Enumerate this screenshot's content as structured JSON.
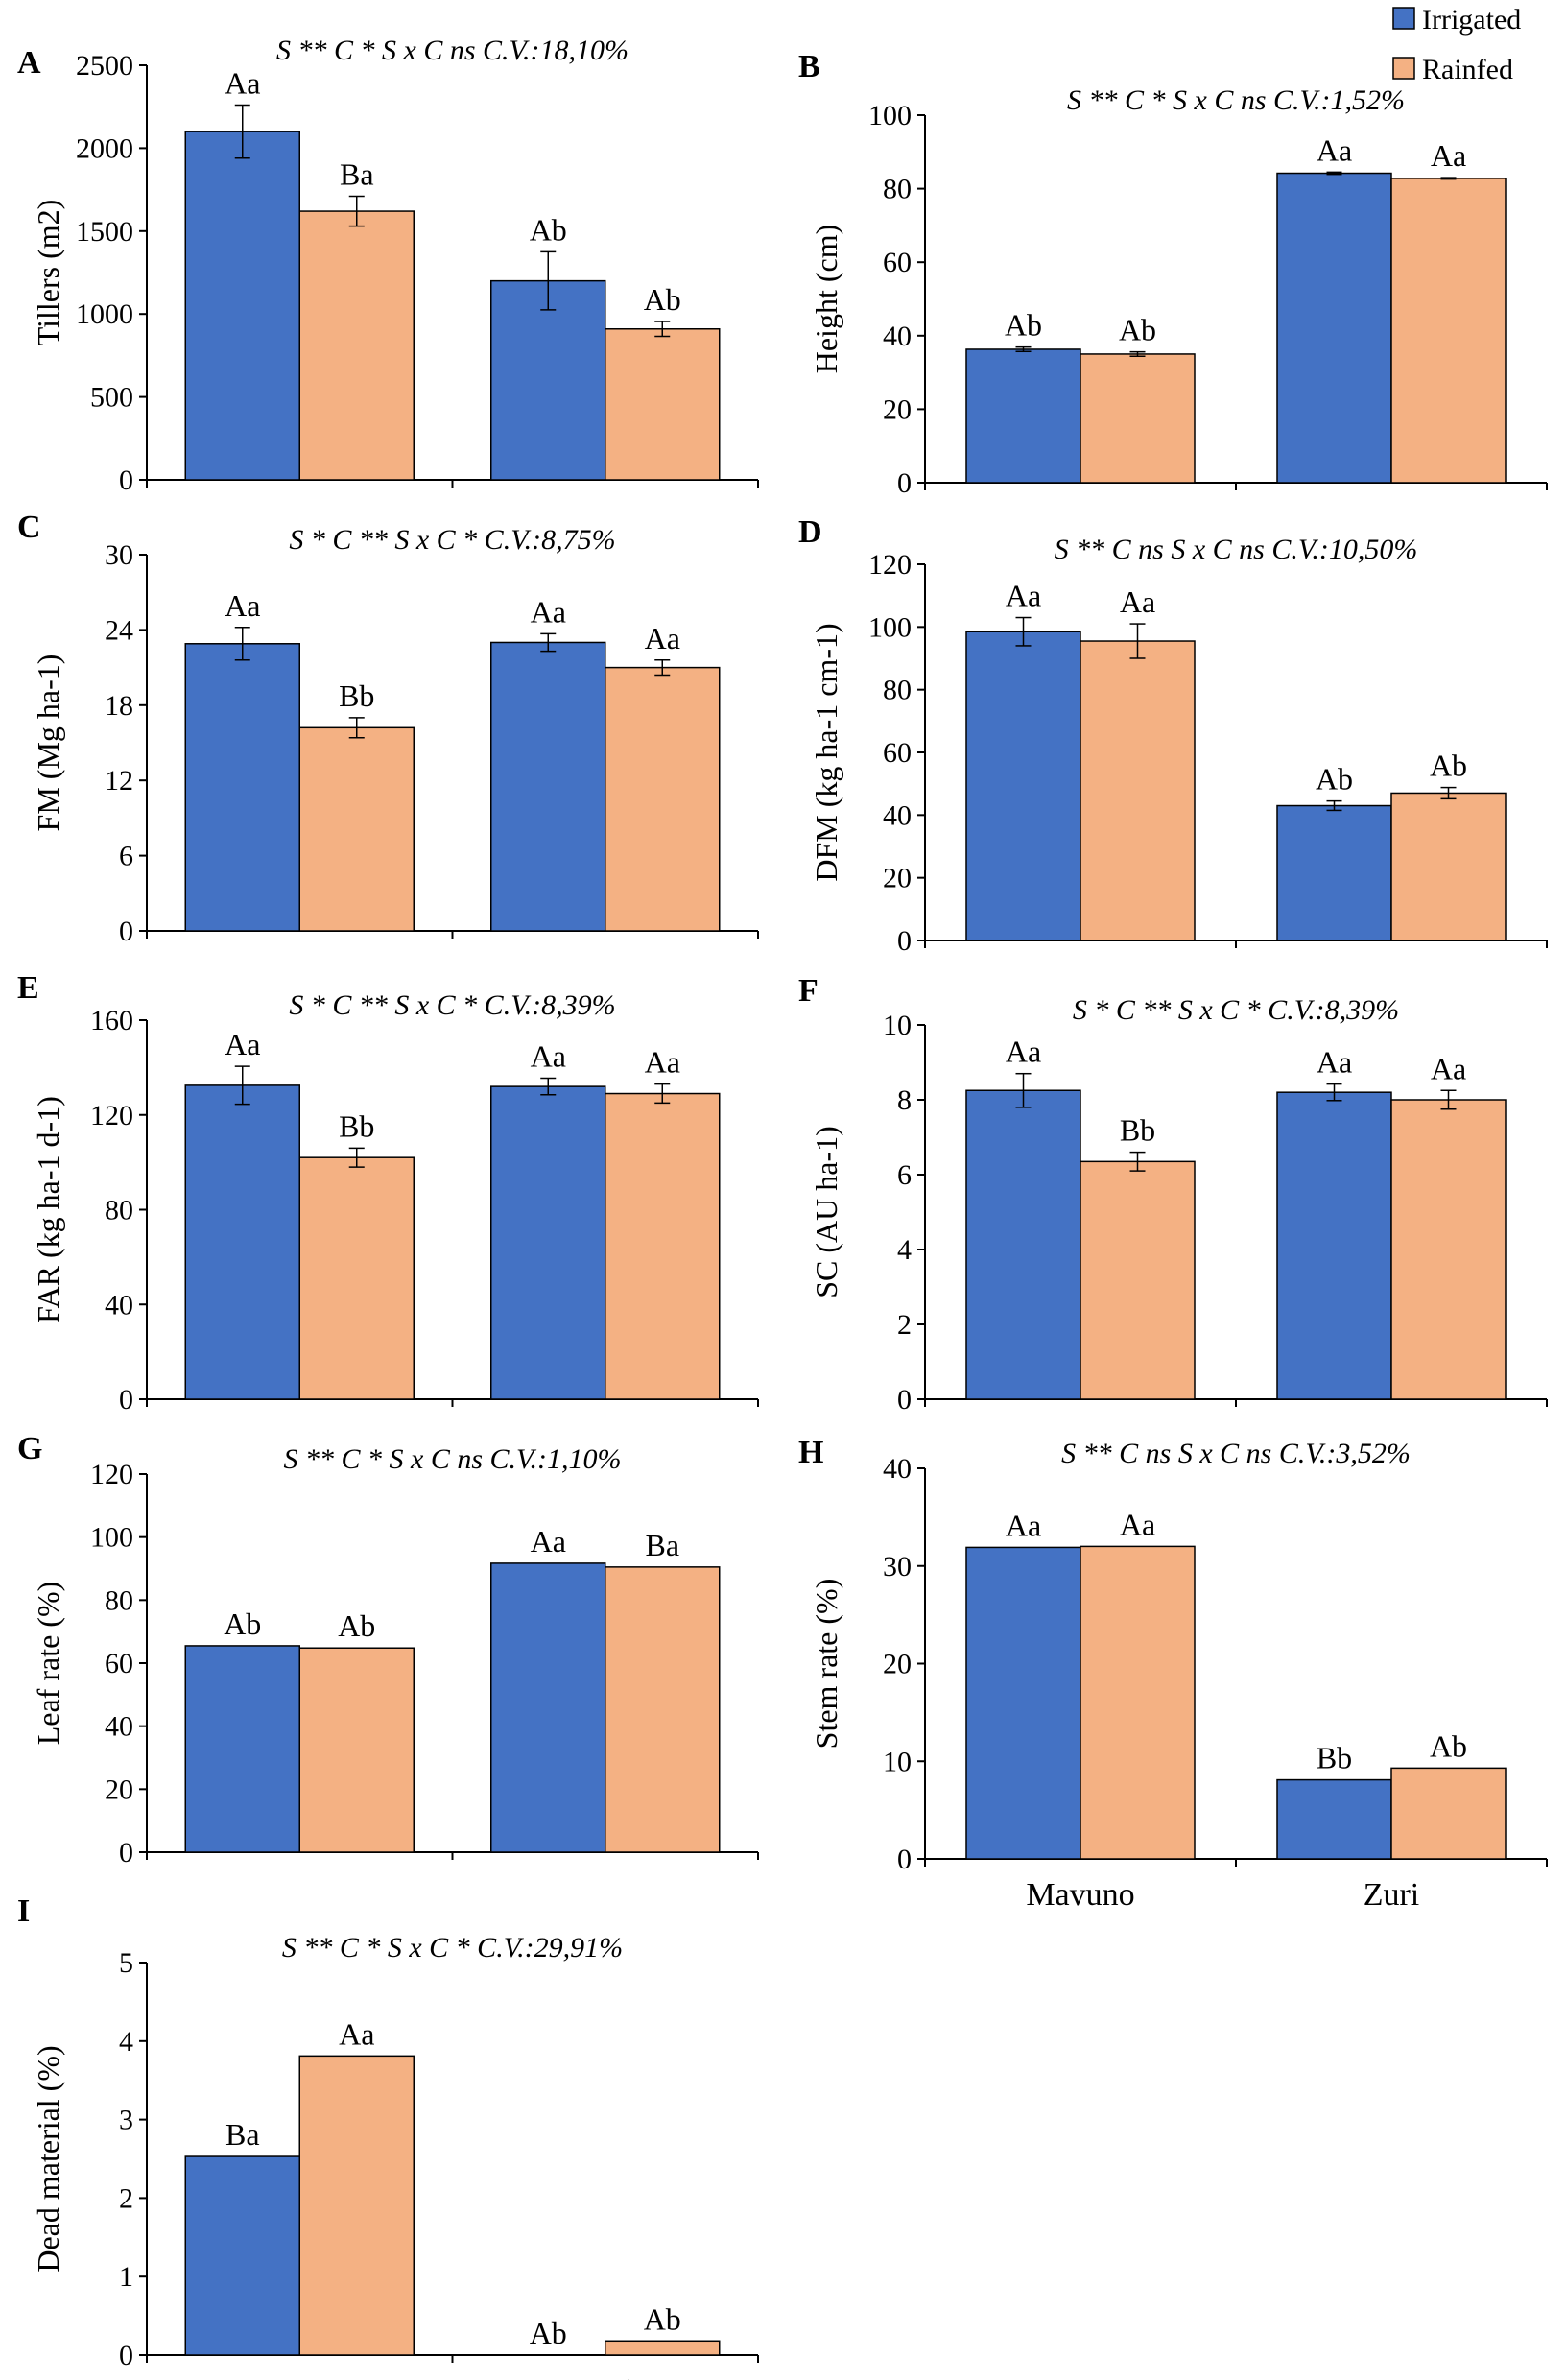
{
  "legend": [
    {
      "label": "Irrigated",
      "color": "#4472c4"
    },
    {
      "label": "Rainfed",
      "color": "#f4b183"
    }
  ],
  "chart_data": [
    {
      "id": "A",
      "type": "bar",
      "categories": [
        "Mavuno",
        "Zuri"
      ],
      "series": [
        {
          "name": "Irrigated",
          "values": [
            2100,
            1200
          ],
          "errors": [
            160,
            175
          ],
          "labels": [
            "Aa",
            "Ab"
          ]
        },
        {
          "name": "Rainfed",
          "values": [
            1620,
            910
          ],
          "errors": [
            90,
            45
          ],
          "labels": [
            "Ba",
            "Ab"
          ]
        }
      ],
      "ylabel": "Tillers (m2)",
      "ylim": [
        0,
        2500
      ],
      "yticks": [
        0,
        500,
        1000,
        1500,
        2000,
        2500
      ],
      "stats": "S ** C * S x C ns C.V.:18,10%"
    },
    {
      "id": "B",
      "type": "bar",
      "categories": [
        "Mavuno",
        "Zuri"
      ],
      "series": [
        {
          "name": "Irrigated",
          "values": [
            36.3,
            84.2
          ],
          "errors": [
            0.6,
            0.3
          ],
          "labels": [
            "Ab",
            "Aa"
          ]
        },
        {
          "name": "Rainfed",
          "values": [
            35.0,
            82.8
          ],
          "errors": [
            0.6,
            0.2
          ],
          "labels": [
            "Ab",
            "Aa"
          ]
        }
      ],
      "ylabel": "Height (cm)",
      "ylim": [
        0,
        100
      ],
      "yticks": [
        0,
        20,
        40,
        60,
        80,
        100
      ],
      "stats": "S ** C * S x C ns C.V.:1,52%"
    },
    {
      "id": "C",
      "type": "bar",
      "categories": [
        "Mavuno",
        "Zuri"
      ],
      "series": [
        {
          "name": "Irrigated",
          "values": [
            22.9,
            23.0
          ],
          "errors": [
            1.3,
            0.7
          ],
          "labels": [
            "Aa",
            "Aa"
          ]
        },
        {
          "name": "Rainfed",
          "values": [
            16.2,
            21.0
          ],
          "errors": [
            0.8,
            0.6
          ],
          "labels": [
            "Bb",
            "Aa"
          ]
        }
      ],
      "ylabel": "FM (Mg ha-1)",
      "ylim": [
        0,
        30
      ],
      "yticks": [
        0,
        6,
        12,
        18,
        24,
        30
      ],
      "stats": "S * C ** S x C * C.V.:8,75%"
    },
    {
      "id": "D",
      "type": "bar",
      "categories": [
        "Mavuno",
        "Zuri"
      ],
      "series": [
        {
          "name": "Irrigated",
          "values": [
            98.5,
            43.0
          ],
          "errors": [
            4.5,
            1.5
          ],
          "labels": [
            "Aa",
            "Ab"
          ]
        },
        {
          "name": "Rainfed",
          "values": [
            95.5,
            47.0
          ],
          "errors": [
            5.5,
            1.8
          ],
          "labels": [
            "Aa",
            "Ab"
          ]
        }
      ],
      "ylabel": "DFM (kg ha-1 cm-1)",
      "ylim": [
        0,
        120
      ],
      "yticks": [
        0,
        20,
        40,
        60,
        80,
        100,
        120
      ],
      "stats": "S ** C ns S x C ns C.V.:10,50%"
    },
    {
      "id": "E",
      "type": "bar",
      "categories": [
        "Mavuno",
        "Zuri"
      ],
      "series": [
        {
          "name": "Irrigated",
          "values": [
            132.5,
            132.0
          ],
          "errors": [
            8.0,
            3.5
          ],
          "labels": [
            "Aa",
            "Aa"
          ]
        },
        {
          "name": "Rainfed",
          "values": [
            102.0,
            129.0
          ],
          "errors": [
            4.0,
            4.0
          ],
          "labels": [
            "Bb",
            "Aa"
          ]
        }
      ],
      "ylabel": "FAR (kg ha-1 d-1)",
      "ylim": [
        0,
        160
      ],
      "yticks": [
        0,
        40,
        80,
        120,
        160
      ],
      "stats": "S * C ** S x C * C.V.:8,39%"
    },
    {
      "id": "F",
      "type": "bar",
      "categories": [
        "Mavuno",
        "Zuri"
      ],
      "series": [
        {
          "name": "Irrigated",
          "values": [
            8.25,
            8.2
          ],
          "errors": [
            0.45,
            0.22
          ],
          "labels": [
            "Aa",
            "Aa"
          ]
        },
        {
          "name": "Rainfed",
          "values": [
            6.35,
            8.0
          ],
          "errors": [
            0.25,
            0.25
          ],
          "labels": [
            "Bb",
            "Aa"
          ]
        }
      ],
      "ylabel": "SC (AU ha-1)",
      "ylim": [
        0,
        10
      ],
      "yticks": [
        0,
        2,
        4,
        6,
        8,
        10
      ],
      "stats": "S * C ** S x C * C.V.:8,39%"
    },
    {
      "id": "G",
      "type": "bar",
      "categories": [
        "Mavuno",
        "Zuri"
      ],
      "series": [
        {
          "name": "Irrigated",
          "values": [
            65.5,
            91.7
          ],
          "errors": [
            0,
            0
          ],
          "labels": [
            "Ab",
            "Aa"
          ]
        },
        {
          "name": "Rainfed",
          "values": [
            64.8,
            90.5
          ],
          "errors": [
            0,
            0
          ],
          "labels": [
            "Ab",
            "Ba"
          ]
        }
      ],
      "ylabel": "Leaf rate (%)",
      "ylim": [
        0,
        120
      ],
      "yticks": [
        0,
        20,
        40,
        60,
        80,
        100,
        120
      ],
      "stats": "S ** C * S x C ns C.V.:1,10%"
    },
    {
      "id": "H",
      "type": "bar",
      "categories": [
        "Mavuno",
        "Zuri"
      ],
      "series": [
        {
          "name": "Irrigated",
          "values": [
            31.9,
            8.1
          ],
          "errors": [
            0,
            0
          ],
          "labels": [
            "Aa",
            "Bb"
          ]
        },
        {
          "name": "Rainfed",
          "values": [
            32.0,
            9.3
          ],
          "errors": [
            0,
            0
          ],
          "labels": [
            "Aa",
            "Ab"
          ]
        }
      ],
      "ylabel": "Stem rate (%)",
      "ylim": [
        0,
        40
      ],
      "yticks": [
        0,
        10,
        20,
        30,
        40
      ],
      "stats": "S ** C ns S x C ns C.V.:3,52%"
    },
    {
      "id": "I",
      "type": "bar",
      "categories": [
        "Mavuno",
        "Zuri"
      ],
      "series": [
        {
          "name": "Irrigated",
          "values": [
            2.53,
            0.0
          ],
          "errors": [
            0,
            0
          ],
          "labels": [
            "Ba",
            "Ab"
          ]
        },
        {
          "name": "Rainfed",
          "values": [
            3.81,
            0.18
          ],
          "errors": [
            0,
            0
          ],
          "labels": [
            "Aa",
            "Ab"
          ]
        }
      ],
      "ylabel": "Dead material (%)",
      "ylim": [
        0,
        5
      ],
      "yticks": [
        0,
        1,
        2,
        3,
        4,
        5
      ],
      "stats": "S ** C * S x C * C.V.:29,91%"
    }
  ]
}
